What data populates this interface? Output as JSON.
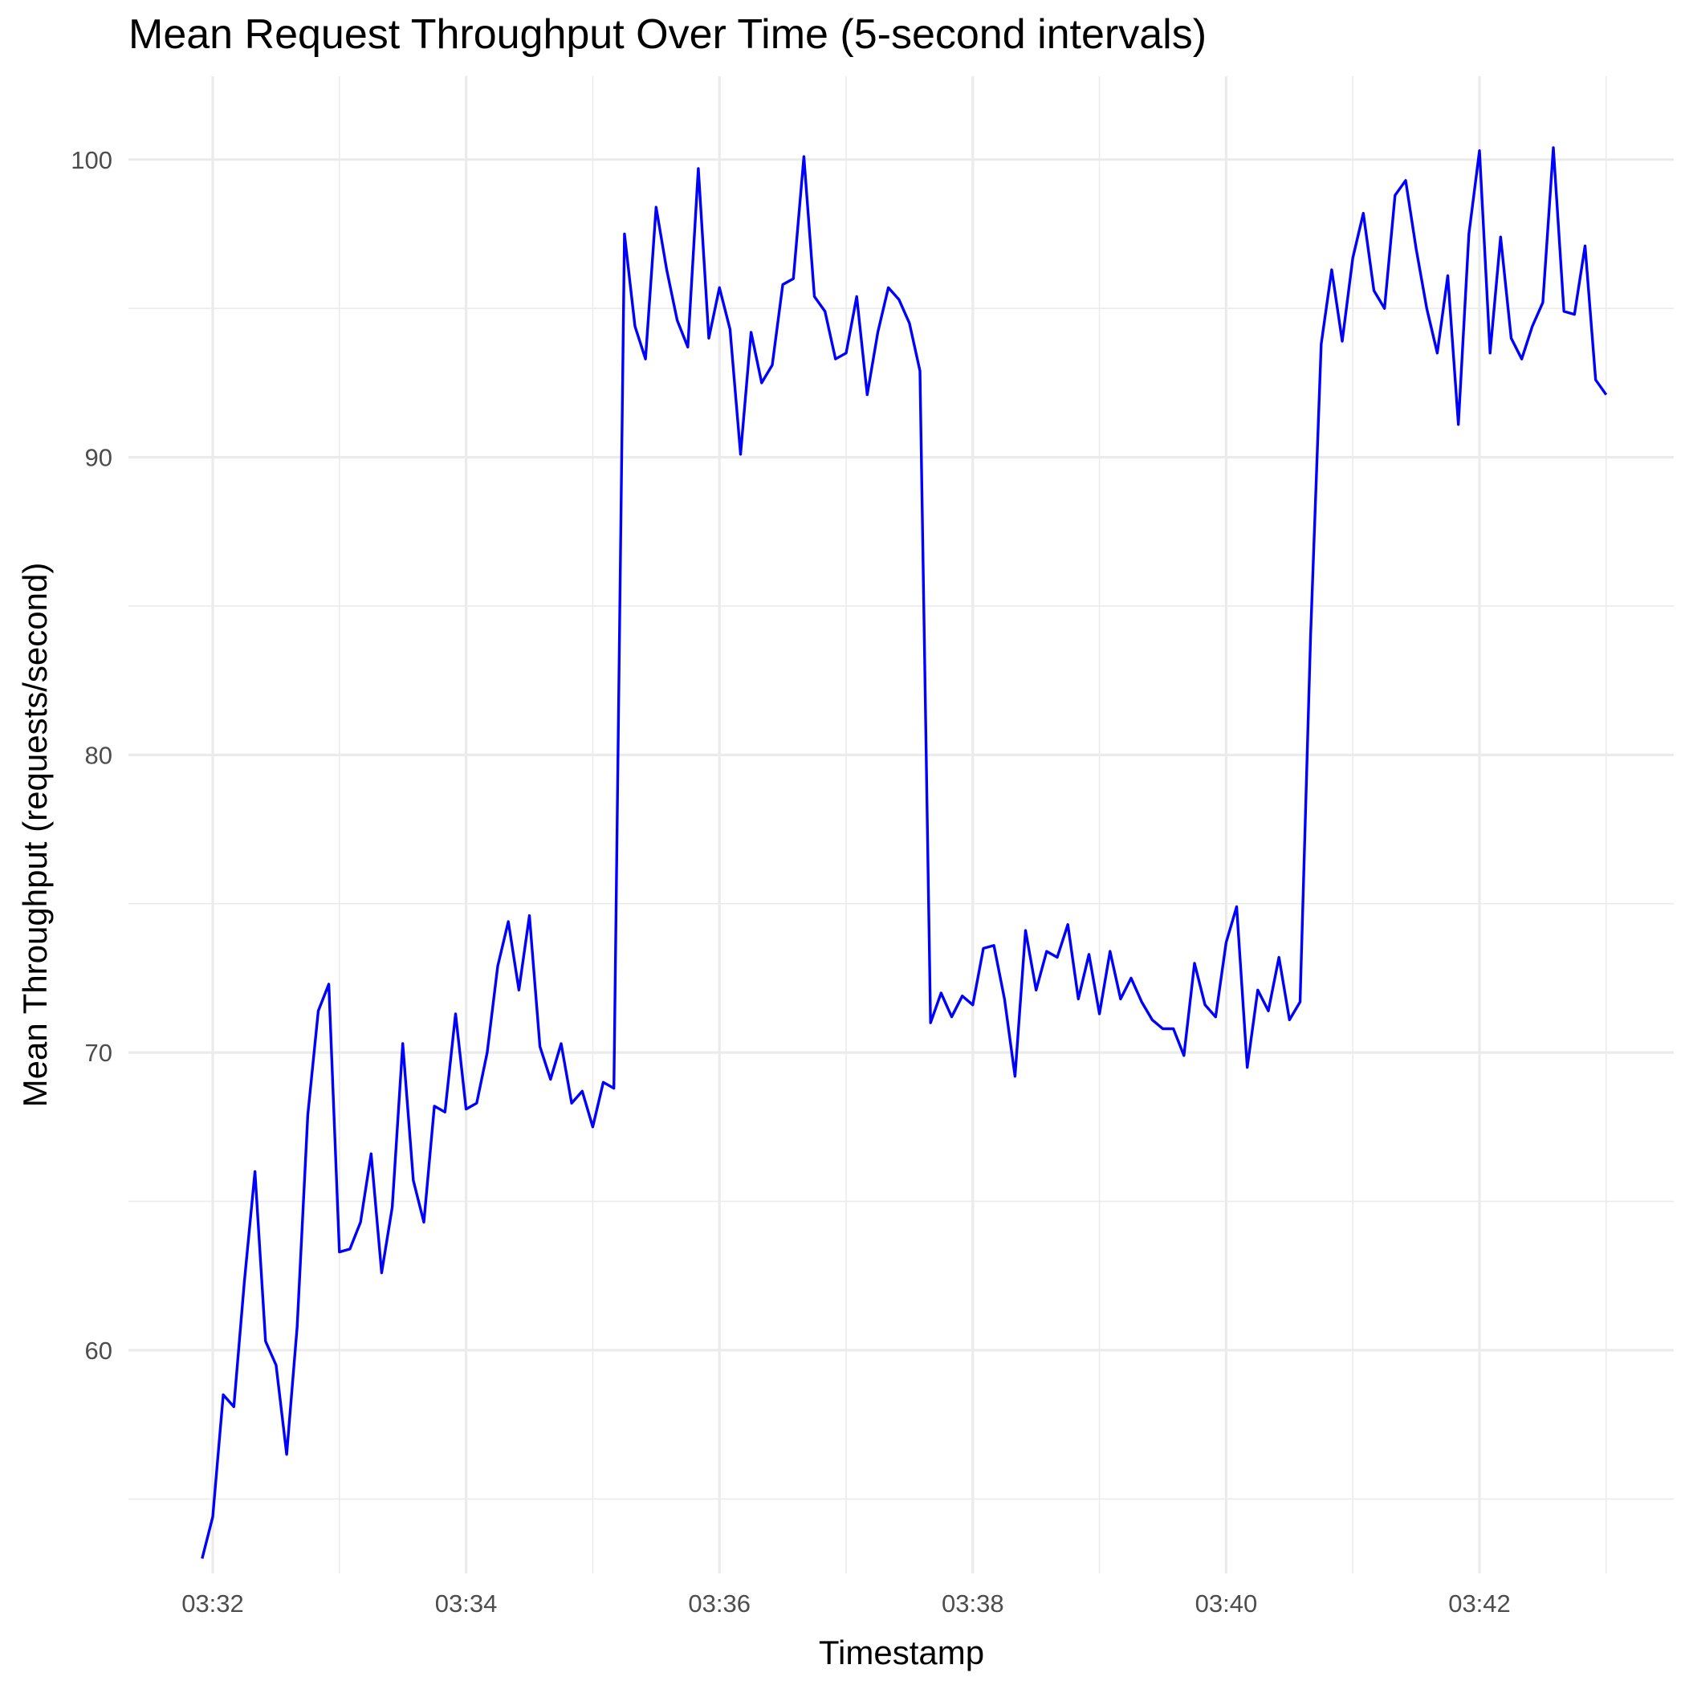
{
  "chart_data": {
    "type": "line",
    "title": "Mean Request Throughput Over Time (5-second intervals)",
    "xlabel": "Timestamp",
    "ylabel": "Mean Throughput (requests/second)",
    "x_tick_labels": [
      "03:32",
      "03:34",
      "03:36",
      "03:38",
      "03:40",
      "03:42"
    ],
    "y_ticks": [
      60,
      70,
      80,
      90,
      100
    ],
    "ylim": [
      52.5,
      102.8
    ],
    "grid": true,
    "legend": "none",
    "series": [
      {
        "color": "#0000ff",
        "x": [
          "03:31:55",
          "03:32:00",
          "03:32:05",
          "03:32:10",
          "03:32:15",
          "03:32:20",
          "03:32:25",
          "03:32:30",
          "03:32:35",
          "03:32:40",
          "03:32:45",
          "03:32:50",
          "03:32:55",
          "03:33:00",
          "03:33:05",
          "03:33:10",
          "03:33:15",
          "03:33:20",
          "03:33:25",
          "03:33:30",
          "03:33:35",
          "03:33:40",
          "03:33:45",
          "03:33:50",
          "03:33:55",
          "03:34:00",
          "03:34:05",
          "03:34:10",
          "03:34:15",
          "03:34:20",
          "03:34:25",
          "03:34:30",
          "03:34:35",
          "03:34:40",
          "03:34:45",
          "03:34:50",
          "03:34:55",
          "03:35:00",
          "03:35:05",
          "03:35:10",
          "03:35:15",
          "03:35:20",
          "03:35:25",
          "03:35:30",
          "03:35:35",
          "03:35:40",
          "03:35:45",
          "03:35:50",
          "03:35:55",
          "03:36:00",
          "03:36:05",
          "03:36:10",
          "03:36:15",
          "03:36:20",
          "03:36:25",
          "03:36:30",
          "03:36:35",
          "03:36:40",
          "03:36:45",
          "03:36:50",
          "03:36:55",
          "03:37:00",
          "03:37:05",
          "03:37:10",
          "03:37:15",
          "03:37:20",
          "03:37:25",
          "03:37:30",
          "03:37:35",
          "03:37:40",
          "03:37:45",
          "03:37:50",
          "03:37:55",
          "03:38:00",
          "03:38:05",
          "03:38:10",
          "03:38:15",
          "03:38:20",
          "03:38:25",
          "03:38:30",
          "03:38:35",
          "03:38:40",
          "03:38:45",
          "03:38:50",
          "03:38:55",
          "03:39:00",
          "03:39:05",
          "03:39:10",
          "03:39:15",
          "03:39:20",
          "03:39:25",
          "03:39:30",
          "03:39:35",
          "03:39:40",
          "03:39:45",
          "03:39:50",
          "03:39:55",
          "03:40:00",
          "03:40:05",
          "03:40:10",
          "03:40:15",
          "03:40:20",
          "03:40:25",
          "03:40:30",
          "03:40:35",
          "03:40:40",
          "03:40:45",
          "03:40:50",
          "03:40:55",
          "03:41:00",
          "03:41:05",
          "03:41:10",
          "03:41:15",
          "03:41:20",
          "03:41:25",
          "03:41:30",
          "03:41:35",
          "03:41:40",
          "03:41:45",
          "03:41:50",
          "03:41:55",
          "03:42:00",
          "03:42:05",
          "03:42:10",
          "03:42:15",
          "03:42:20",
          "03:42:25",
          "03:42:30",
          "03:42:35",
          "03:42:40",
          "03:42:45",
          "03:42:50",
          "03:42:55",
          "03:43:00"
        ],
        "values": [
          53.0,
          54.4,
          58.5,
          58.1,
          62.3,
          66.0,
          60.3,
          59.5,
          56.5,
          60.8,
          67.9,
          71.4,
          72.3,
          63.3,
          63.4,
          64.3,
          66.6,
          62.6,
          64.8,
          70.3,
          65.7,
          64.3,
          68.2,
          68.0,
          71.3,
          68.1,
          68.3,
          70.0,
          72.9,
          74.4,
          72.1,
          74.6,
          70.2,
          69.1,
          70.3,
          68.3,
          68.7,
          67.5,
          69.0,
          68.8,
          97.5,
          94.4,
          93.3,
          98.4,
          96.3,
          94.6,
          93.7,
          99.7,
          94.0,
          95.7,
          94.3,
          90.1,
          94.2,
          92.5,
          93.1,
          95.8,
          96.0,
          100.1,
          95.4,
          94.9,
          93.3,
          93.5,
          95.4,
          92.1,
          94.2,
          95.7,
          95.3,
          94.5,
          92.9,
          71.0,
          72.0,
          71.2,
          71.9,
          71.6,
          73.5,
          73.6,
          71.8,
          69.2,
          74.1,
          72.1,
          73.4,
          73.2,
          74.3,
          71.8,
          73.3,
          71.3,
          73.4,
          71.8,
          72.5,
          71.7,
          71.1,
          70.8,
          70.8,
          69.9,
          73.0,
          71.6,
          71.2,
          73.7,
          74.9,
          69.5,
          72.1,
          71.4,
          73.2,
          71.1,
          71.7,
          84.0,
          93.8,
          96.3,
          93.9,
          96.7,
          98.2,
          95.6,
          95.0,
          98.8,
          99.3,
          97.0,
          95.0,
          93.5,
          96.1,
          91.1,
          97.5,
          100.3,
          93.5,
          97.4,
          94.0,
          93.3,
          94.4,
          95.2,
          100.4,
          94.9,
          94.8,
          97.1,
          92.6,
          92.1
        ]
      }
    ]
  }
}
